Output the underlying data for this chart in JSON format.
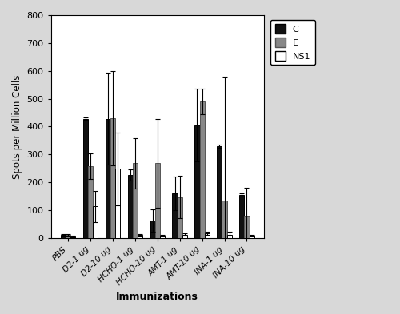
{
  "categories": [
    "PBS",
    "D2-1 ug",
    "D2-10 ug",
    "HCHO-1 ug",
    "HCHO-10 ug",
    "AMT-1 ug",
    "AMT-10 ug",
    "INA-1 ug",
    "INA-10 ug"
  ],
  "series": {
    "C": [
      10,
      428,
      428,
      225,
      62,
      160,
      405,
      330,
      155
    ],
    "E": [
      10,
      258,
      430,
      268,
      268,
      147,
      490,
      135,
      80
    ],
    "NS1": [
      5,
      113,
      248,
      10,
      8,
      12,
      17,
      10,
      7
    ]
  },
  "errors": {
    "C": [
      5,
      5,
      165,
      20,
      40,
      60,
      130,
      5,
      5
    ],
    "E": [
      5,
      45,
      170,
      90,
      160,
      75,
      45,
      445,
      100
    ],
    "NS1": [
      2,
      57,
      130,
      5,
      3,
      5,
      5,
      12,
      3
    ]
  },
  "colors": {
    "C": "#111111",
    "E": "#888888",
    "NS1": "#ffffff"
  },
  "edgecolors": {
    "C": "#000000",
    "E": "#555555",
    "NS1": "#000000"
  },
  "ylabel": "Spots per Million Cells",
  "xlabel": "Immunizations",
  "ylim": [
    0,
    800
  ],
  "yticks": [
    0,
    100,
    200,
    300,
    400,
    500,
    600,
    700,
    800
  ],
  "bar_width": 0.22,
  "legend_labels": [
    "C",
    "E",
    "NS1"
  ],
  "figsize": [
    5.0,
    3.93
  ],
  "dpi": 100,
  "background_color": "#d8d8d8",
  "plot_background": "#ffffff"
}
